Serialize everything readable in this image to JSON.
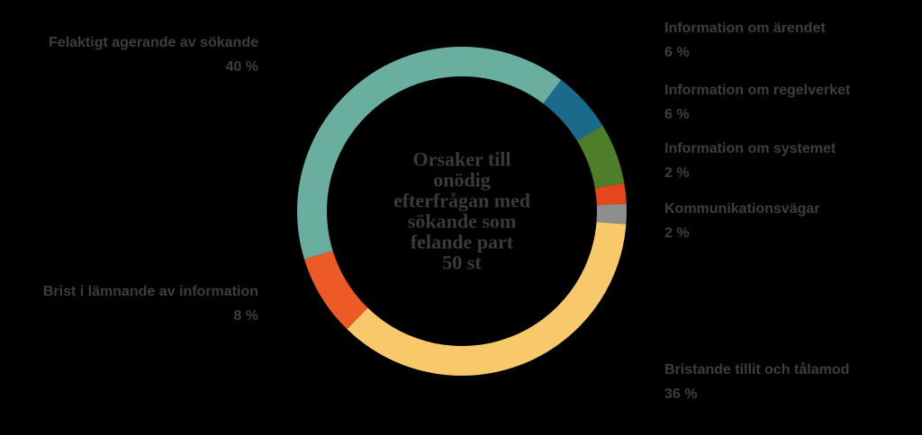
{
  "chart_data": {
    "type": "donut",
    "title_lines": [
      "Orsaker till",
      "onödig",
      "efterfrågan med",
      "sökande som",
      "felande part",
      "50 st"
    ],
    "categories": [
      "Information om ärendet",
      "Information om regelverket",
      "Information om systemet",
      "Kommunikationsvägar",
      "Bristande tillit och tålamod",
      "Brist i lämnande av information",
      "Felaktigt agerande av sökande"
    ],
    "values": [
      6,
      6,
      2,
      2,
      36,
      8,
      40
    ],
    "value_labels": [
      "6 %",
      "6 %",
      "2 %",
      "2 %",
      "36 %",
      "8 %",
      "40 %"
    ],
    "colors": [
      "#1b6a8c",
      "#4f7e2b",
      "#e6461d",
      "#8e8e8e",
      "#f8c96b",
      "#ee5a25",
      "#69ae9e"
    ]
  }
}
